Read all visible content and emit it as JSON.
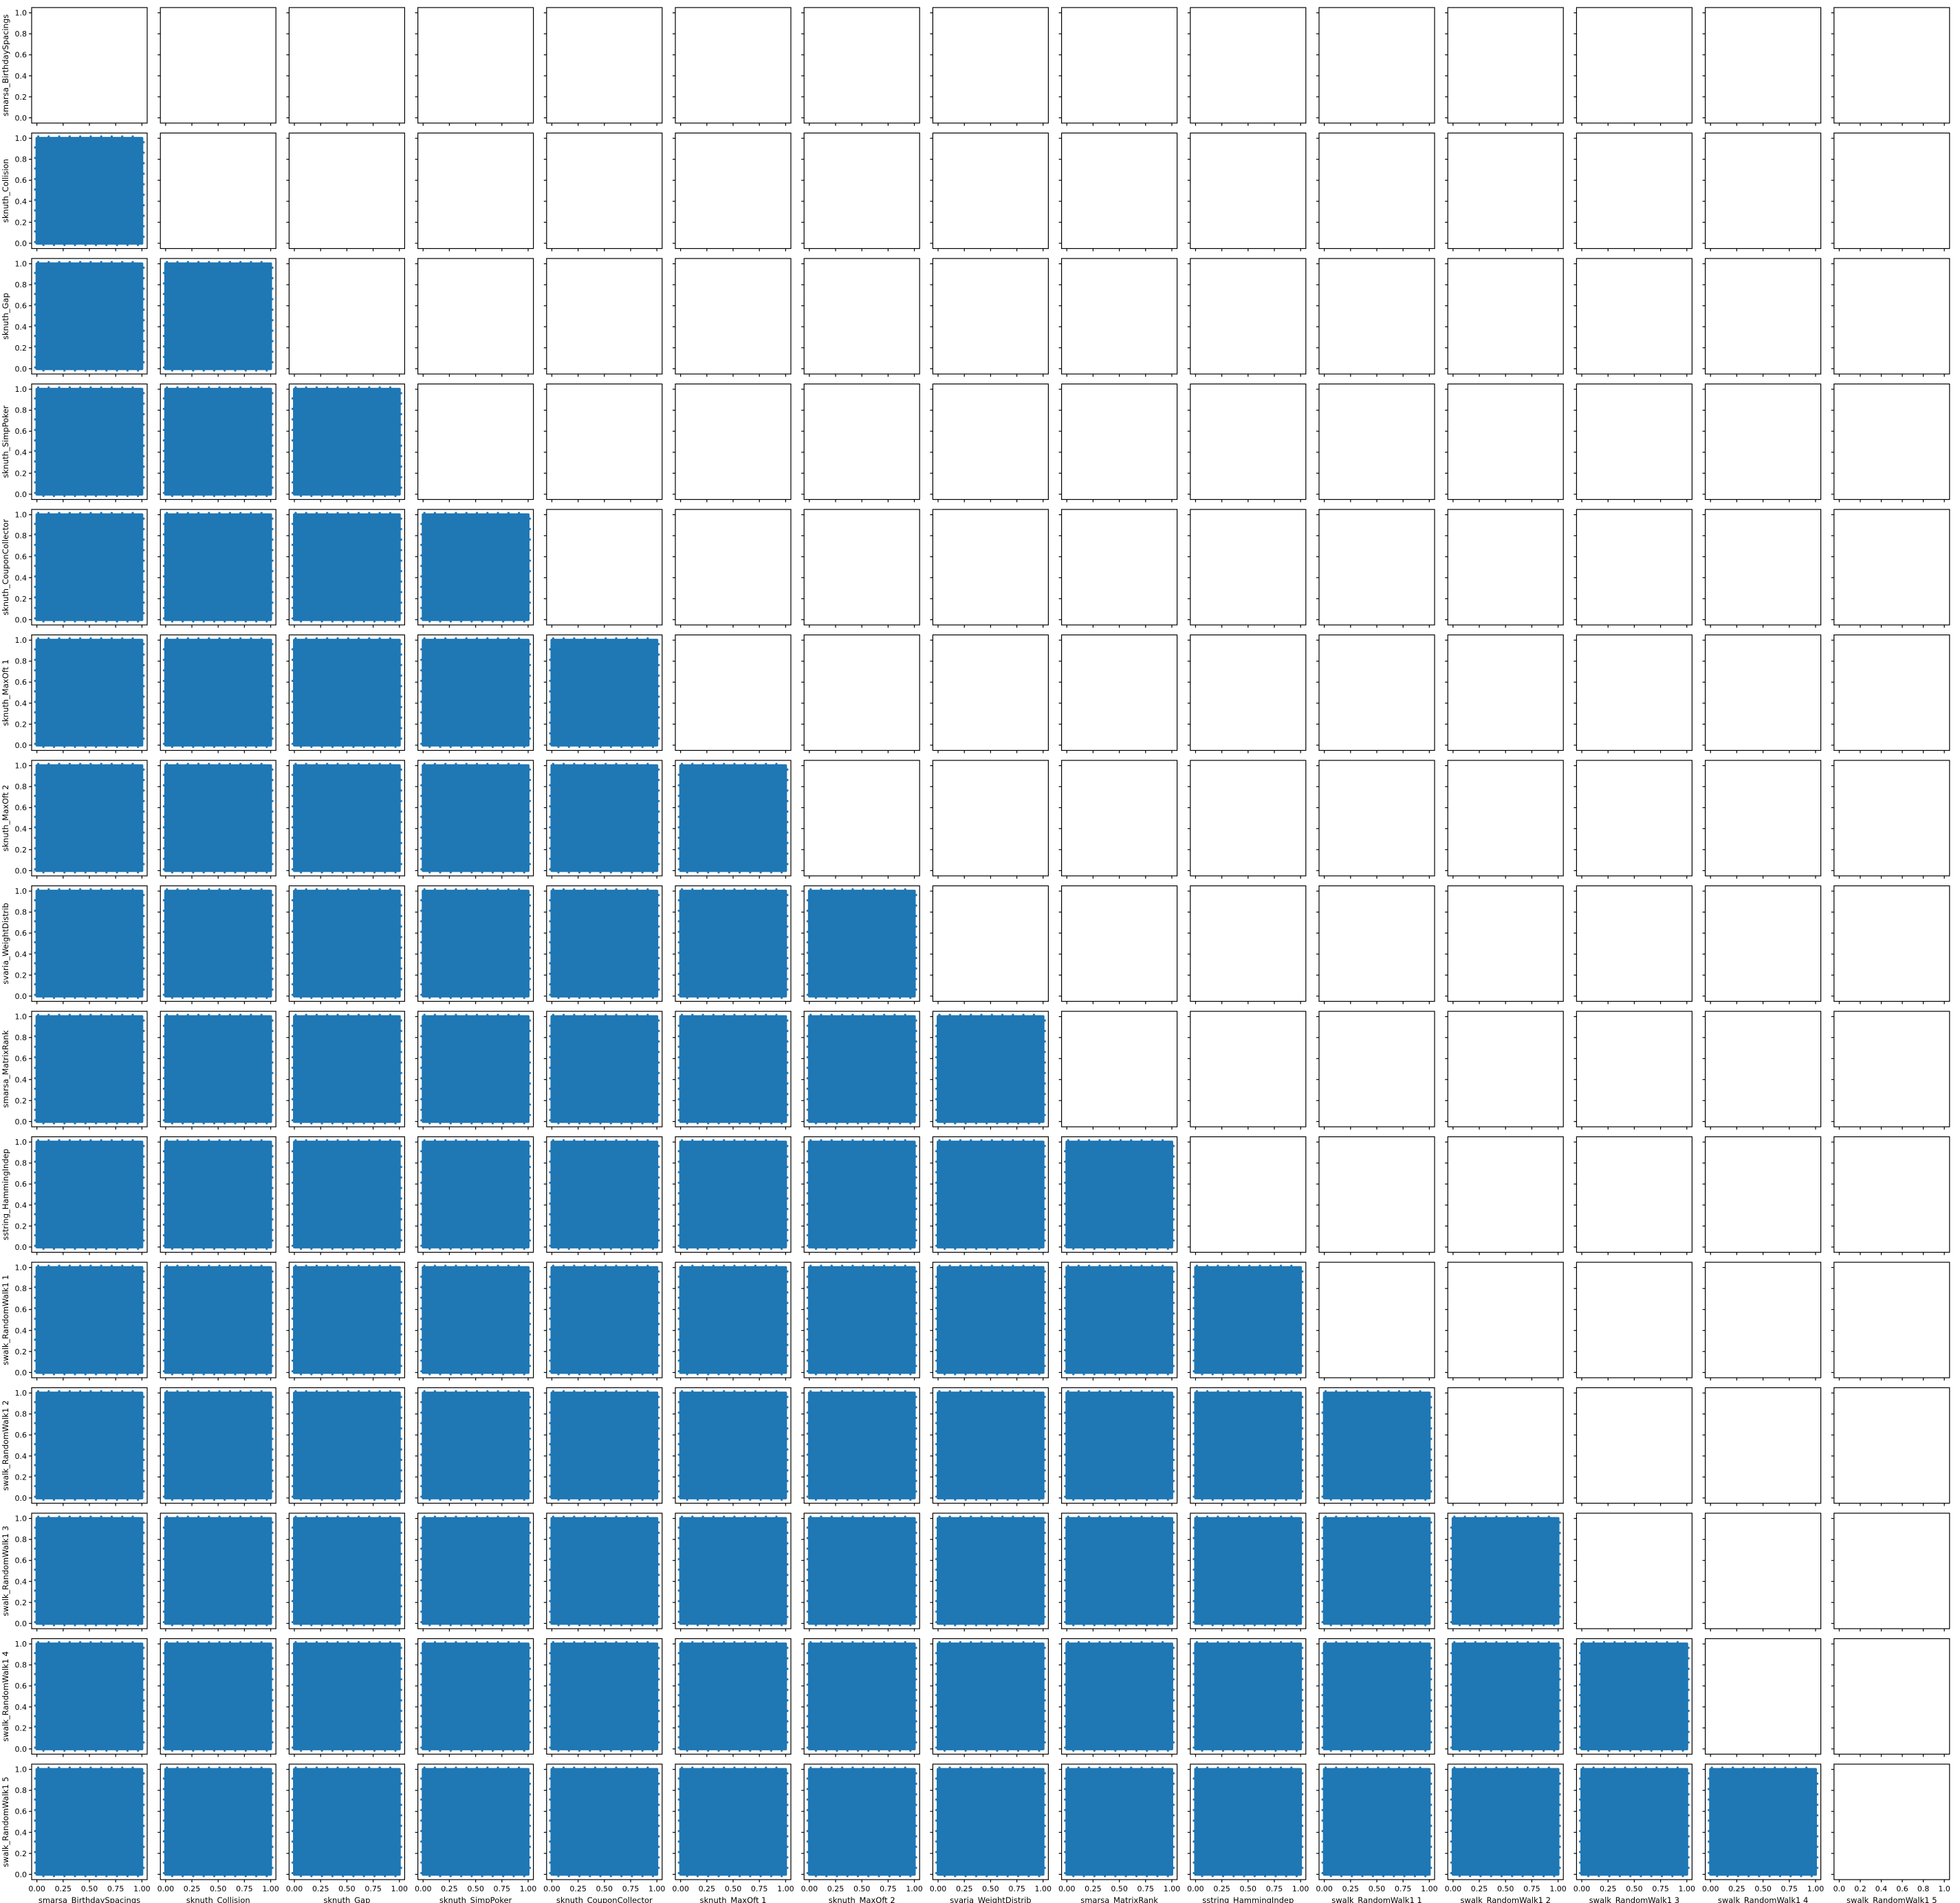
{
  "chart_data": {
    "type": "scatter",
    "title": "",
    "layout": "lower-triangular scatter matrix (pairplot)",
    "variables": [
      "smarsa_BirthdaySpacings",
      "sknuth_Collision",
      "sknuth_Gap",
      "sknuth_SimpPoker",
      "sknuth_CouponCollector",
      "sknuth_MaxOft 1",
      "sknuth_MaxOft 2",
      "svaria_WeightDistrib",
      "smarsa_MatrixRank",
      "sstring_HammingIndep",
      "swalk_RandomWalk1 1",
      "swalk_RandomWalk1 2",
      "swalk_RandomWalk1 3",
      "swalk_RandomWalk1 4",
      "swalk_RandomWalk1 5"
    ],
    "x_ticks": [
      "0.00",
      "0.25",
      "0.50",
      "0.75",
      "1.00"
    ],
    "y_ticks": [
      "0.0",
      "0.2",
      "0.4",
      "0.6",
      "0.8",
      "1.0"
    ],
    "last_column_x_ticks": [
      "0.0",
      "0.2",
      "0.4",
      "0.6",
      "0.8",
      "1.0"
    ],
    "xlim": [
      0,
      1
    ],
    "ylim": [
      0,
      1
    ],
    "panel_content": "each panel below the diagonal is a dense scatter of values filling the unit square [0,1] x [0,1]; diagonal and upper-triangle panels are empty",
    "marker_color": "#1f77b4",
    "grid": false,
    "legend": "none"
  }
}
